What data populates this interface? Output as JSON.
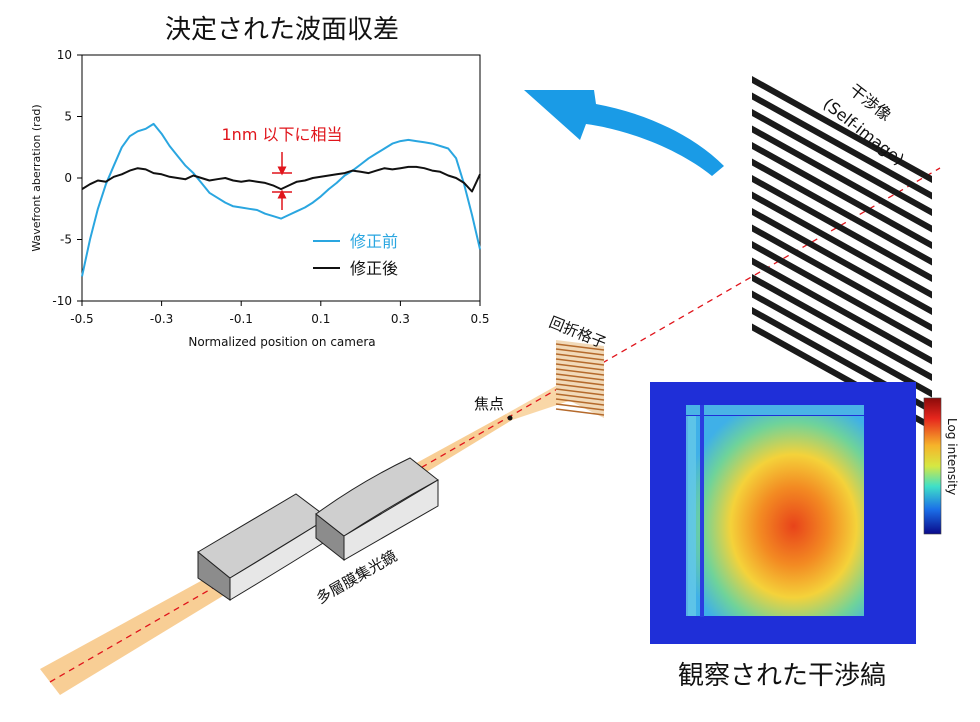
{
  "plot_title": "決定された波面収差",
  "fringe_title": "観察された干渉縞",
  "self_image_label_1": "干渉像",
  "self_image_label_2": "(Self-image)",
  "grating_label": "回折格子",
  "focus_label": "焦点",
  "mirror_label": "多層膜集光鏡",
  "colorbar_label": "Log intensity",
  "annotation": "1nm 以下に相当",
  "colors": {
    "before": "#2aa6e0",
    "after": "#111111",
    "annotation": "#e0141b",
    "arrow": "#1a9be6",
    "beam": "#f7c98a",
    "beam_axis": "#e0141b",
    "grating": "#b56a2c"
  },
  "chart_data": {
    "type": "line",
    "xlabel": "Normalized position on camera",
    "ylabel": "Wavefront aberration (rad)",
    "xlim": [
      -0.5,
      0.5
    ],
    "ylim": [
      -10,
      10
    ],
    "xticks": [
      "-0.5",
      "-0.3",
      "-0.1",
      "0.1",
      "0.3",
      "0.5"
    ],
    "yticks": [
      "10",
      "5",
      "0",
      "-5",
      "-10"
    ],
    "grid": false,
    "legend_position": "lower-right",
    "series": [
      {
        "name": "修正前",
        "x": [
          -0.5,
          -0.48,
          -0.46,
          -0.44,
          -0.42,
          -0.4,
          -0.38,
          -0.36,
          -0.34,
          -0.32,
          -0.3,
          -0.28,
          -0.26,
          -0.24,
          -0.22,
          -0.2,
          -0.18,
          -0.16,
          -0.14,
          -0.12,
          -0.1,
          -0.08,
          -0.06,
          -0.04,
          -0.02,
          0.0,
          0.02,
          0.04,
          0.06,
          0.08,
          0.1,
          0.12,
          0.14,
          0.16,
          0.18,
          0.2,
          0.22,
          0.24,
          0.26,
          0.28,
          0.3,
          0.32,
          0.34,
          0.36,
          0.38,
          0.4,
          0.42,
          0.44,
          0.46,
          0.48,
          0.5
        ],
        "y": [
          -8.0,
          -5.0,
          -2.5,
          -0.5,
          1.0,
          2.5,
          3.4,
          3.8,
          4.0,
          4.4,
          3.6,
          2.6,
          1.8,
          1.0,
          0.4,
          -0.4,
          -1.2,
          -1.6,
          -2.0,
          -2.3,
          -2.4,
          -2.5,
          -2.6,
          -2.9,
          -3.1,
          -3.3,
          -3.0,
          -2.7,
          -2.4,
          -2.0,
          -1.5,
          -0.9,
          -0.4,
          0.2,
          0.6,
          1.1,
          1.6,
          2.0,
          2.4,
          2.8,
          3.0,
          3.1,
          3.0,
          2.9,
          2.8,
          2.6,
          2.4,
          1.6,
          -0.5,
          -3.0,
          -5.8
        ]
      },
      {
        "name": "修正後",
        "x": [
          -0.5,
          -0.48,
          -0.46,
          -0.44,
          -0.42,
          -0.4,
          -0.38,
          -0.36,
          -0.34,
          -0.32,
          -0.3,
          -0.28,
          -0.26,
          -0.24,
          -0.22,
          -0.2,
          -0.18,
          -0.16,
          -0.14,
          -0.12,
          -0.1,
          -0.08,
          -0.06,
          -0.04,
          -0.02,
          0.0,
          0.02,
          0.04,
          0.06,
          0.08,
          0.1,
          0.12,
          0.14,
          0.16,
          0.18,
          0.2,
          0.22,
          0.24,
          0.26,
          0.28,
          0.3,
          0.32,
          0.34,
          0.36,
          0.38,
          0.4,
          0.42,
          0.44,
          0.46,
          0.48,
          0.5
        ],
        "y": [
          -0.9,
          -0.5,
          -0.2,
          -0.3,
          0.1,
          0.3,
          0.6,
          0.8,
          0.7,
          0.4,
          0.3,
          0.1,
          0.0,
          -0.1,
          0.2,
          0.0,
          -0.2,
          -0.1,
          0.0,
          -0.2,
          -0.3,
          -0.2,
          -0.3,
          -0.4,
          -0.6,
          -0.9,
          -0.6,
          -0.3,
          -0.2,
          0.0,
          0.1,
          0.2,
          0.3,
          0.4,
          0.6,
          0.5,
          0.4,
          0.6,
          0.8,
          0.7,
          0.8,
          0.9,
          0.9,
          0.8,
          0.6,
          0.5,
          0.2,
          0.0,
          -0.4,
          -1.1,
          0.3
        ]
      }
    ]
  }
}
